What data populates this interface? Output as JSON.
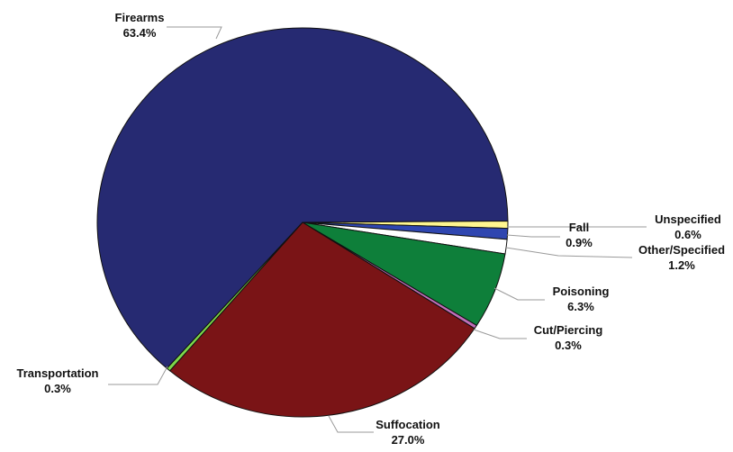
{
  "chart_data": {
    "type": "pie",
    "title": "",
    "slices": [
      {
        "label": "Firearms",
        "value_label": "63.4%",
        "value": 63.4,
        "color": "#262A72"
      },
      {
        "label": "Unspecified",
        "value_label": "0.6%",
        "value": 0.6,
        "color": "#FFF68F"
      },
      {
        "label": "Fall",
        "value_label": "0.9%",
        "value": 0.9,
        "color": "#2F46B0"
      },
      {
        "label": "Other/Specified",
        "value_label": "1.2%",
        "value": 1.2,
        "color": "#FFFFFF"
      },
      {
        "label": "Poisoning",
        "value_label": "6.3%",
        "value": 6.3,
        "color": "#0E7F3A"
      },
      {
        "label": "Cut/Piercing",
        "value_label": "0.3%",
        "value": 0.3,
        "color": "#C06FB8"
      },
      {
        "label": "Suffocation",
        "value_label": "27.0%",
        "value": 27.0,
        "color": "#7A1416"
      },
      {
        "label": "Transportation",
        "value_label": "0.3%",
        "value": 0.3,
        "color": "#7DD84A"
      }
    ]
  }
}
